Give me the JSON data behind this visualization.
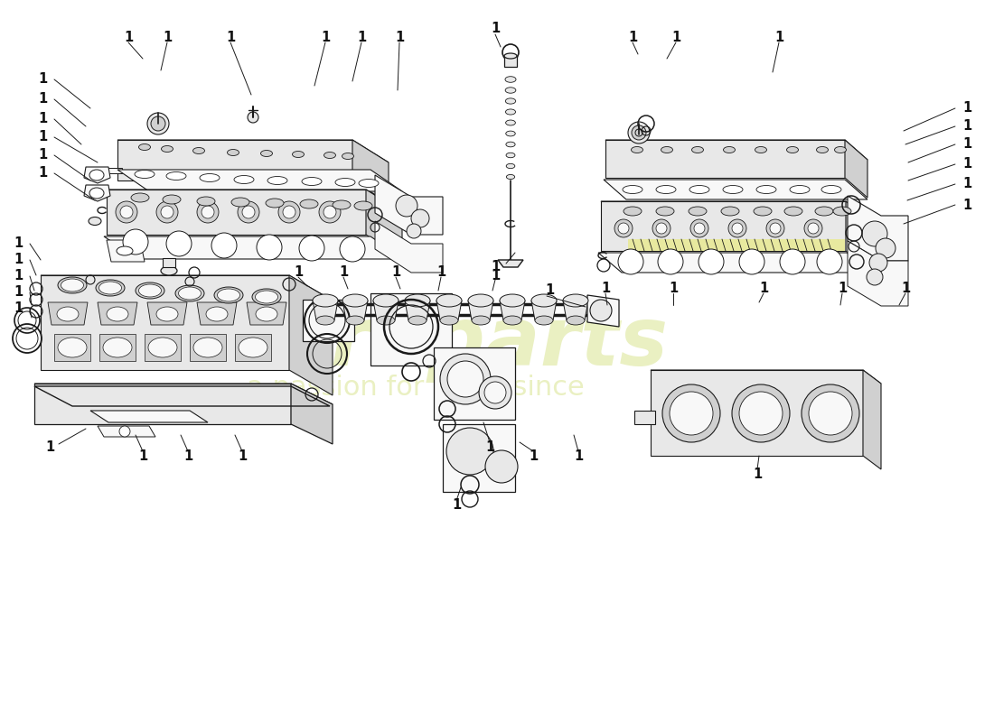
{
  "bg_color": "#ffffff",
  "lc": "#1a1a1a",
  "fc_light": "#f8f8f8",
  "fc_mid": "#e8e8e8",
  "fc_dark": "#d0d0d0",
  "fc_yellow": "#e8ea80",
  "wm_color": "#c8d860",
  "wm_alpha": 0.38,
  "lw_main": 0.8,
  "lw_thick": 1.3,
  "label_fs": 10.5,
  "label_color": "#111111",
  "label_fw": "bold"
}
